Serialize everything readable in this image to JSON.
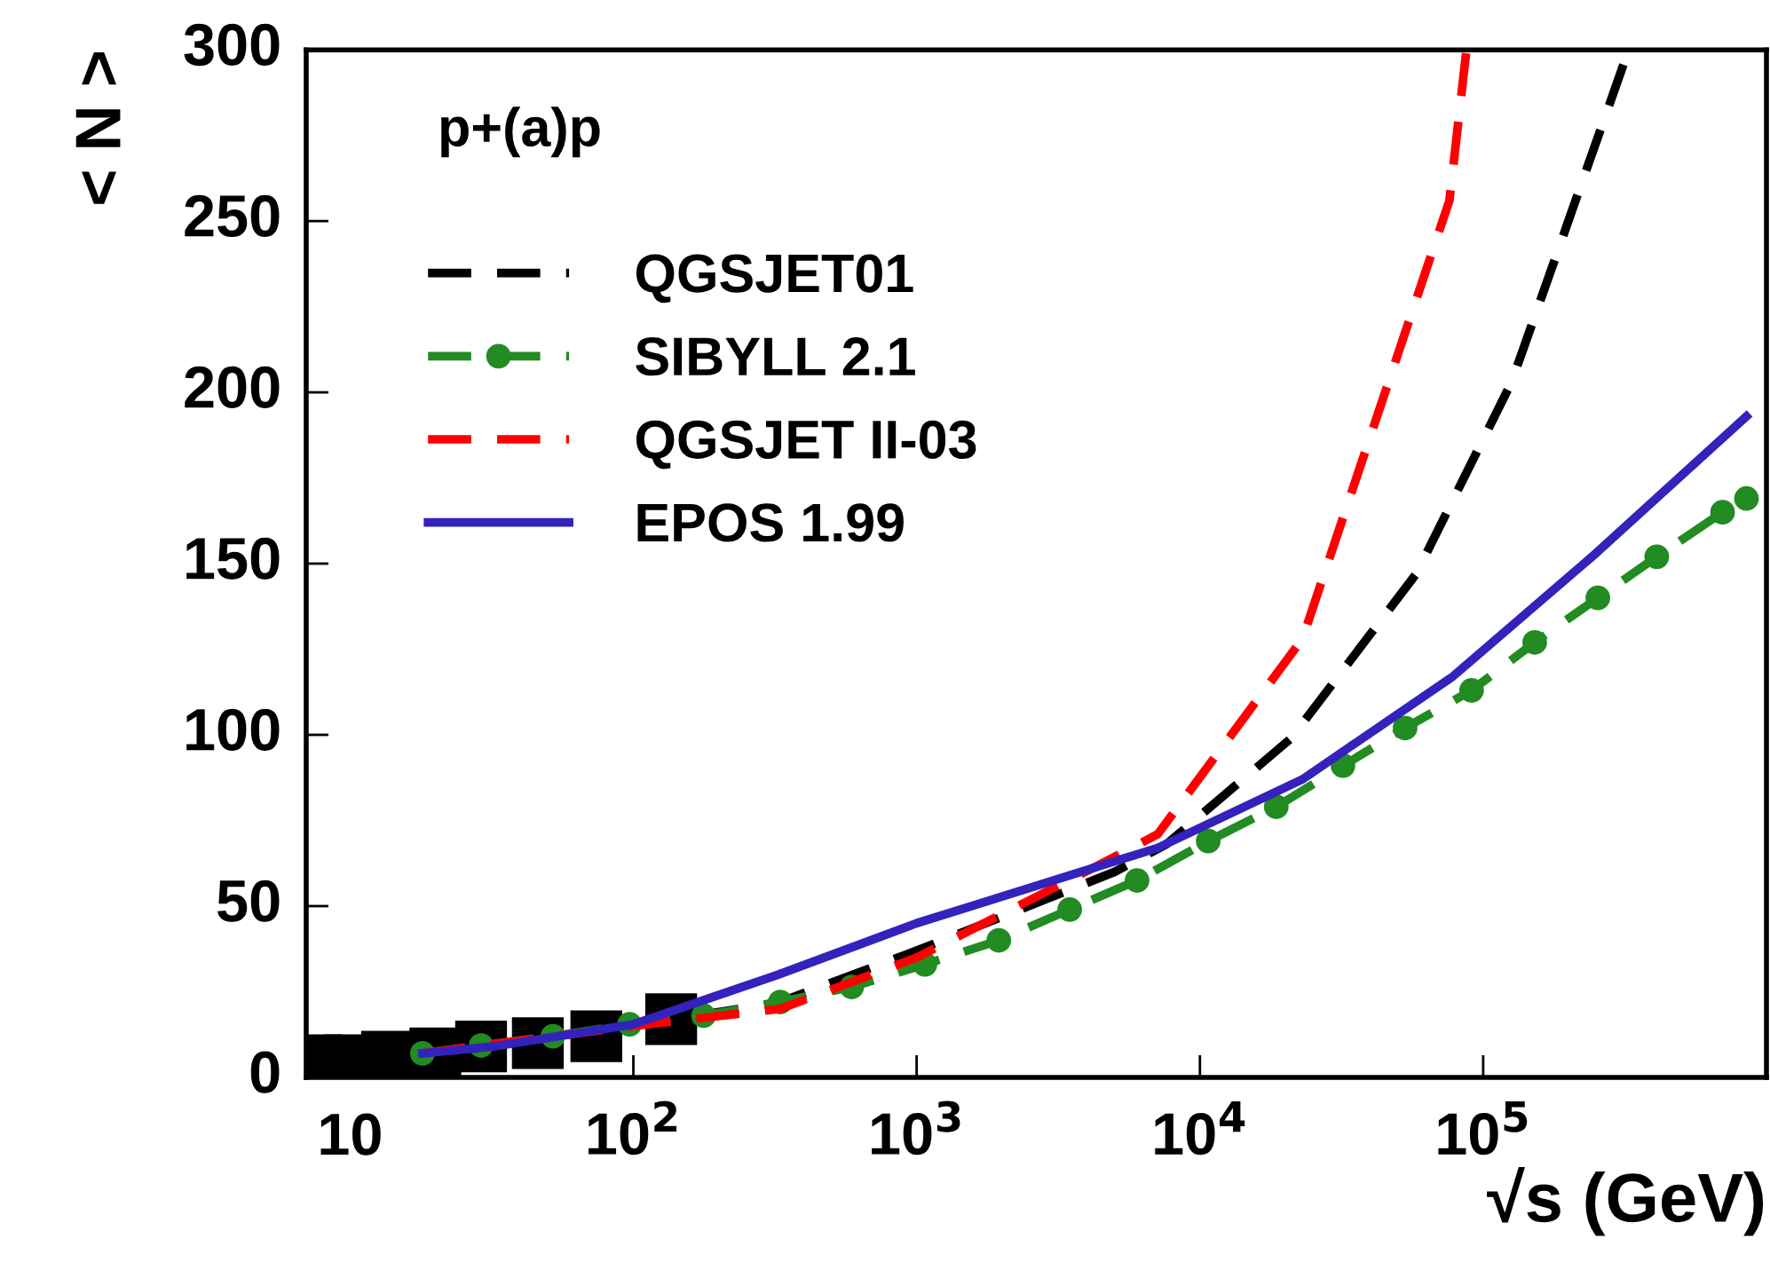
{
  "chart_data": {
    "type": "line",
    "xlabel": "√s (GeV)",
    "ylabel": "< N >",
    "log": "x",
    "xlim": [
      7,
      1000000
    ],
    "ylim": [
      0,
      300
    ],
    "xticks": [
      {
        "value": 10,
        "label": "10"
      },
      {
        "value": 100,
        "label": "10$^{2}$"
      },
      {
        "value": 1000,
        "label": "10$^{3}$"
      },
      {
        "value": 10000,
        "label": "10$^{4}$"
      },
      {
        "value": 100000,
        "label": "10$^{5}$"
      }
    ],
    "yticks": [
      0,
      50,
      100,
      150,
      200,
      250,
      300
    ],
    "grid": false,
    "legend": "top left",
    "annotations": [
      "p+(a)p"
    ],
    "series": [
      {
        "type": "scatter",
        "marker": "square",
        "color": "#000000",
        "x": [
          7.6,
          10,
          13.5,
          20,
          29,
          46,
          74,
          136
        ],
        "values": [
          5,
          5,
          6,
          7,
          9,
          10,
          12,
          17
        ]
      },
      {
        "name": "QGSJET01",
        "color": "#000000",
        "line_style": "dashed",
        "marker": "none",
        "x": [
          18,
          100,
          330,
          1000,
          5000,
          7600,
          21000,
          58000,
          126000,
          323000
        ],
        "values": [
          7,
          15,
          22,
          37,
          60,
          68,
          99,
          147,
          203,
          299
        ]
      },
      {
        "name": "SIBYLL 2.1",
        "color": "#228b22",
        "line_style": "dashed",
        "marker": "circle",
        "x": [
          18,
          29,
          52,
          97,
          177,
          330,
          590,
          1070,
          1950,
          3470,
          6000,
          10700,
          18600,
          32000,
          53000,
          91000,
          152000,
          254000,
          410000,
          700000,
          850000
        ],
        "values": [
          7,
          9.3,
          12,
          15.5,
          18,
          22,
          26.4,
          33,
          40,
          49,
          57.5,
          69,
          79,
          91,
          102,
          113,
          127,
          140,
          152,
          165,
          169
        ]
      },
      {
        "name": "QGSJET II-03",
        "color": "#ff0000",
        "line_style": "dashed",
        "marker": "none",
        "x": [
          18,
          100,
          330,
          1000,
          4400,
          7100,
          23000,
          76000,
          87000
        ],
        "values": [
          7,
          15,
          20,
          35,
          62,
          71,
          128,
          256,
          299
        ]
      },
      {
        "name": "EPOS 1.99",
        "color": "#3322bb",
        "line_style": "solid",
        "marker": "none",
        "x": [
          18,
          32,
          100,
          325,
          1000,
          7100,
          23000,
          78000,
          250000,
          850000
        ],
        "values": [
          7,
          9,
          15.5,
          30,
          45,
          67,
          87,
          117,
          153,
          193
        ]
      }
    ]
  }
}
